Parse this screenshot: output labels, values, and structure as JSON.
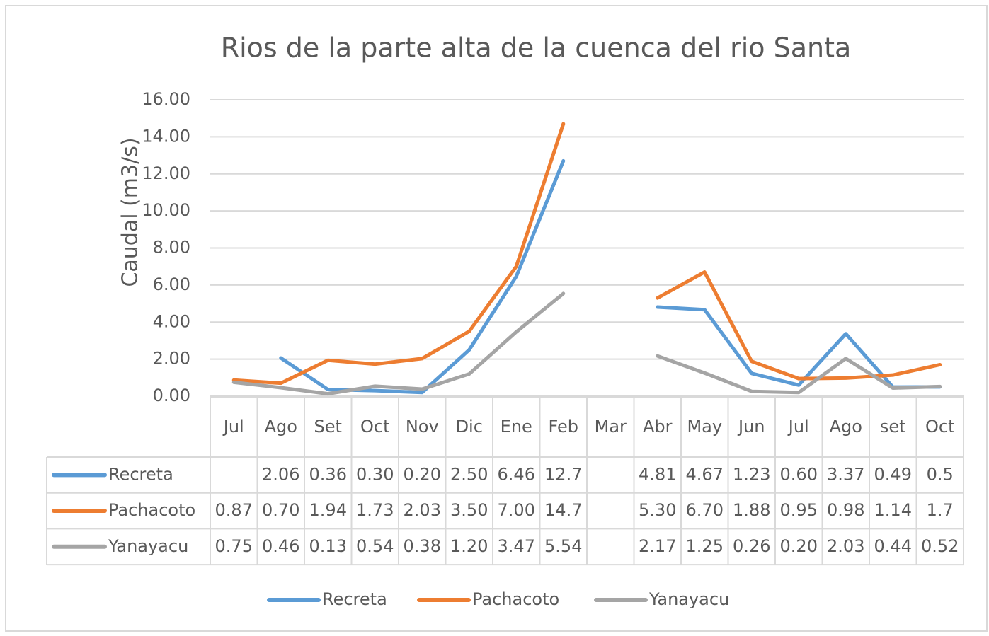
{
  "chart_data": {
    "type": "line",
    "title": "Rios de la parte alta de la cuenca del rio Santa",
    "y_label": "Caudal (m3/s)",
    "categories": [
      "Jul",
      "Ago",
      "Set",
      "Oct",
      "Nov",
      "Dic",
      "Ene",
      "Feb",
      "Mar",
      "Abr",
      "May",
      "Jun",
      "Jul",
      "Ago",
      "set",
      "Oct"
    ],
    "series": [
      {
        "name": "Recreta",
        "color": "#5b9bd5",
        "values": [
          null,
          2.06,
          0.36,
          0.3,
          0.2,
          2.5,
          6.46,
          12.7,
          null,
          4.81,
          4.67,
          1.23,
          0.6,
          3.37,
          0.49,
          0.5
        ],
        "value_labels": [
          null,
          "2.06",
          "0.36",
          "0.30",
          "0.20",
          "2.50",
          "6.46",
          "12.7",
          null,
          "4.81",
          "4.67",
          "1.23",
          "0.60",
          "3.37",
          "0.49",
          "0.5"
        ]
      },
      {
        "name": "Pachacoto",
        "color": "#ed7d31",
        "values": [
          0.87,
          0.7,
          1.94,
          1.73,
          2.03,
          3.5,
          7.0,
          14.7,
          null,
          5.3,
          6.7,
          1.88,
          0.95,
          0.98,
          1.14,
          1.7
        ],
        "value_labels": [
          "0.87",
          "0.70",
          "1.94",
          "1.73",
          "2.03",
          "3.50",
          "7.00",
          "14.7",
          null,
          "5.30",
          "6.70",
          "1.88",
          "0.95",
          "0.98",
          "1.14",
          "1.7"
        ]
      },
      {
        "name": "Yanayacu",
        "color": "#a5a5a5",
        "values": [
          0.75,
          0.46,
          0.13,
          0.54,
          0.38,
          1.2,
          3.47,
          5.54,
          null,
          2.17,
          1.25,
          0.26,
          0.2,
          2.03,
          0.44,
          0.52
        ],
        "value_labels": [
          "0.75",
          "0.46",
          "0.13",
          "0.54",
          "0.38",
          "1.20",
          "3.47",
          "5.54",
          null,
          "2.17",
          "1.25",
          "0.26",
          "0.20",
          "2.03",
          "0.44",
          "0.52"
        ]
      }
    ],
    "ylim": [
      0,
      16
    ],
    "yticks": [
      {
        "value": 0,
        "label": "0.00"
      },
      {
        "value": 2,
        "label": "2.00"
      },
      {
        "value": 4,
        "label": "4.00"
      },
      {
        "value": 6,
        "label": "6.00"
      },
      {
        "value": 8,
        "label": "8.00"
      },
      {
        "value": 10,
        "label": "10.00"
      },
      {
        "value": 12,
        "label": "12.00"
      },
      {
        "value": 14,
        "label": "14.00"
      },
      {
        "value": 16,
        "label": "16.00"
      }
    ],
    "grid": true,
    "legend": "bottom"
  }
}
